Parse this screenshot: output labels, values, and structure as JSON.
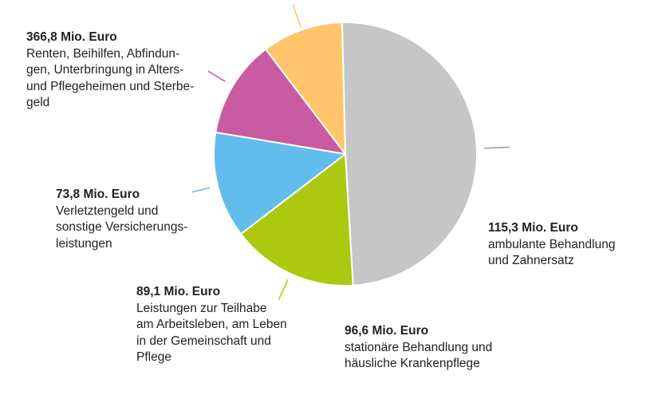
{
  "chart_data": {
    "type": "pie",
    "unit": "Mio. Euro",
    "slices": [
      {
        "value": 366.8,
        "value_label": "366,8 Mio. Euro",
        "label": "Renten, Beihilfen, Abfindun-\ngen, Unterbringung in Alters-\nund Pflegeheimen und Sterbe-\ngeld",
        "color": "#c6c6c6"
      },
      {
        "value": 115.3,
        "value_label": "115,3 Mio. Euro",
        "label": "ambulante Behandlung\nund Zahnersatz",
        "color": "#adc90f"
      },
      {
        "value": 96.6,
        "value_label": "96,6 Mio. Euro",
        "label": "stationäre Behandlung und\nhäusliche Krankenpflege",
        "color": "#63bdec"
      },
      {
        "value": 89.1,
        "value_label": "89,1 Mio. Euro",
        "label": "Leistungen zur Teilhabe\nam Arbeitsleben, am Leben\nin der Gemeinschaft und\nPflege",
        "color": "#c95ba3"
      },
      {
        "value": 73.8,
        "value_label": "73,8 Mio. Euro",
        "label": "Verletztengeld und\nsonstige Versicherungs-\nleistungen",
        "color": "#ffc46c"
      }
    ],
    "title": "",
    "legend": "none"
  }
}
